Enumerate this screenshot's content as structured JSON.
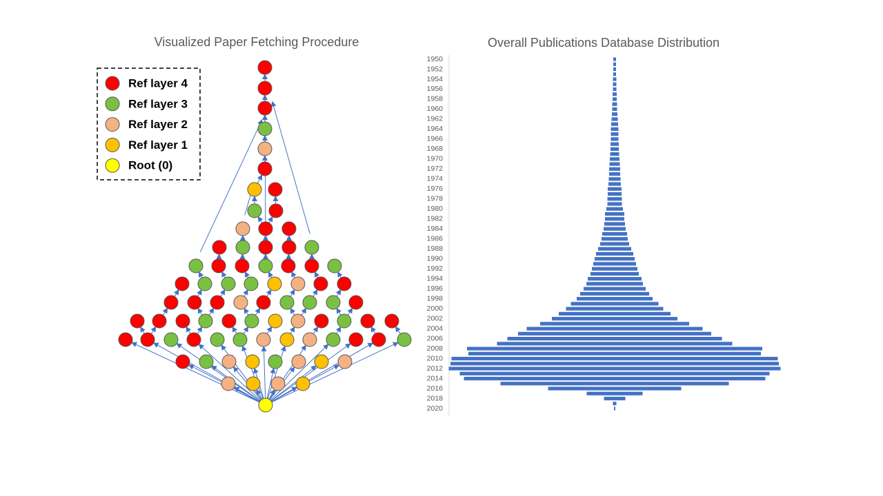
{
  "diagram": {
    "title": "Visualized Paper Fetching Procedure",
    "legend": [
      {
        "label": "Ref layer 4",
        "color": "#ff0000"
      },
      {
        "label": "Ref layer 3",
        "color": "#7ac143"
      },
      {
        "label": "Ref layer 2",
        "color": "#f4b183"
      },
      {
        "label": "Ref layer 1",
        "color": "#ffc000"
      },
      {
        "label": "Root (0)",
        "color": "#ffff00"
      }
    ]
  },
  "chart_data": {
    "type": "bar",
    "orientation": "horizontal",
    "title": "Overall Publications Database Distribution",
    "categories": [
      "1950",
      null,
      "1952",
      null,
      "1954",
      null,
      "1956",
      null,
      "1958",
      null,
      "1960",
      null,
      "1962",
      null,
      "1964",
      null,
      "1966",
      null,
      "1968",
      null,
      "1970",
      null,
      "1972",
      null,
      "1974",
      null,
      "1976",
      null,
      "1978",
      null,
      "1980",
      null,
      "1982",
      null,
      "1984",
      null,
      "1986",
      null,
      "1988",
      null,
      "1990",
      null,
      "1992",
      null,
      "1994",
      null,
      "1996",
      null,
      "1998",
      null,
      "2000",
      null,
      "2002",
      null,
      "2004",
      null,
      "2006",
      null,
      "2008",
      null,
      "2010",
      null,
      "2012",
      null,
      "2014",
      null,
      "2016",
      null,
      "2018",
      null,
      "2020"
    ],
    "values": [
      4,
      4,
      4,
      4,
      5,
      5,
      5,
      6,
      6,
      7,
      7,
      8,
      9,
      10,
      11,
      11,
      11,
      12,
      12,
      13,
      14,
      15,
      16,
      16,
      17,
      18,
      20,
      20,
      21,
      21,
      24,
      28,
      28,
      30,
      32,
      36,
      38,
      42,
      48,
      54,
      58,
      62,
      66,
      70,
      78,
      82,
      90,
      100,
      110,
      127,
      141,
      162,
      182,
      216,
      255,
      280,
      311,
      341,
      428,
      424,
      473,
      476,
      481,
      449,
      437,
      331,
      193,
      81,
      31,
      5,
      2
    ],
    "color": "#4472c4",
    "xlim": [
      0,
      500
    ]
  }
}
